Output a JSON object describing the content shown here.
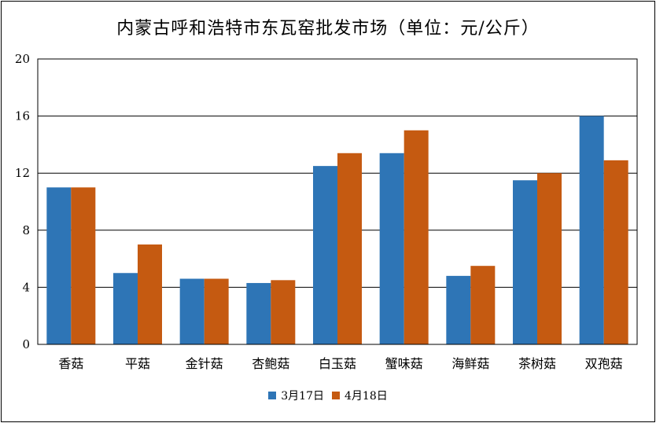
{
  "chart_data": {
    "type": "bar",
    "title": "内蒙古呼和浩特市东瓦窑批发市场（单位：元/公斤）",
    "categories": [
      "香菇",
      "平菇",
      "金针菇",
      "杏鲍菇",
      "白玉菇",
      "蟹味菇",
      "海鲜菇",
      "茶树菇",
      "双孢菇"
    ],
    "series": [
      {
        "name": "3月17日",
        "color": "#2E75B6",
        "values": [
          11,
          5,
          4.6,
          4.3,
          12.5,
          13.4,
          4.8,
          11.5,
          16
        ]
      },
      {
        "name": "4月18日",
        "color": "#C55A11",
        "values": [
          11,
          7,
          4.6,
          4.5,
          13.4,
          15,
          5.5,
          12,
          12.9
        ]
      }
    ],
    "ylim": [
      0,
      20
    ],
    "yticks": [
      0,
      4,
      8,
      12,
      16,
      20
    ],
    "ytick_labels": [
      "0",
      "4",
      "8",
      "12",
      "16",
      "20"
    ],
    "grid": true,
    "legend": "bottom"
  }
}
